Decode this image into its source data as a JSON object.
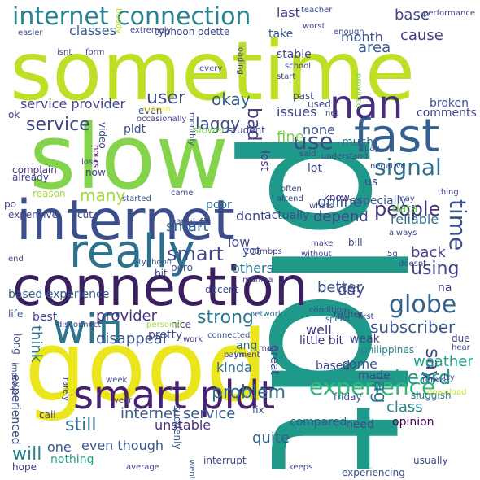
{
  "words": [
    {
      "text": "sometime",
      "color": "#bddf26"
    },
    {
      "text": "slow",
      "color": "#84d44b"
    },
    {
      "text": "pldt",
      "color": "#1f9a8a"
    },
    {
      "text": "good",
      "color": "#ebe51b"
    },
    {
      "text": "connection",
      "color": "#3b1f5f"
    },
    {
      "text": "internet",
      "color": "#3b4e8a"
    },
    {
      "text": "fast",
      "color": "#35608d"
    },
    {
      "text": "nan",
      "color": "#472d7b"
    },
    {
      "text": "really",
      "color": "#2c728e"
    },
    {
      "text": "smart pldt",
      "color": "#482071"
    },
    {
      "text": "wifi",
      "color": "#2a768e"
    },
    {
      "text": "internet connection",
      "color": "#26828e"
    },
    {
      "text": "signal",
      "color": "#2e6f8e"
    },
    {
      "text": "experience",
      "color": "#34b679"
    },
    {
      "text": "time",
      "color": "#3b518b"
    },
    {
      "text": "globe",
      "color": "#33638d"
    },
    {
      "text": "use",
      "color": "#3e4a89"
    },
    {
      "text": "smart",
      "color": "#3f4788"
    },
    {
      "text": "say",
      "color": "#3e4c8a"
    },
    {
      "text": "heard",
      "color": "#1e9c89"
    },
    {
      "text": "problem",
      "color": "#2b748e"
    },
    {
      "text": "internet service",
      "color": "#38598c"
    },
    {
      "text": "people",
      "color": "#46337e"
    },
    {
      "text": "strong",
      "color": "#2a788e"
    },
    {
      "text": "user",
      "color": "#3d4d8a"
    },
    {
      "text": "using",
      "color": "#414487"
    },
    {
      "text": "subscriber",
      "color": "#3a538b"
    },
    {
      "text": "service",
      "color": "#3e4a89"
    },
    {
      "text": "bad",
      "color": "#433e85"
    },
    {
      "text": "okay",
      "color": "#34618d"
    },
    {
      "text": "laggy",
      "color": "#3e4989"
    },
    {
      "text": "lag",
      "color": "#2c728e"
    },
    {
      "text": "still",
      "color": "#2e6f8e"
    },
    {
      "text": "will",
      "color": "#25838e"
    },
    {
      "text": "many",
      "color": "#a2da37"
    },
    {
      "text": "month",
      "color": "#3a548c"
    },
    {
      "text": "area",
      "color": "#375b8d"
    },
    {
      "text": "base",
      "color": "#404588"
    },
    {
      "text": "cause",
      "color": "#433d84"
    },
    {
      "text": "classes",
      "color": "#38588c"
    },
    {
      "text": "service provider",
      "color": "#3f4788"
    },
    {
      "text": "others",
      "color": "#2a788e"
    },
    {
      "text": "depend",
      "color": "#3e4989"
    },
    {
      "text": "reliable",
      "color": "#2e6e8e"
    },
    {
      "text": "online",
      "color": "#38598c"
    },
    {
      "text": "better",
      "color": "#3b528b"
    },
    {
      "text": "day",
      "color": "#3f4889"
    },
    {
      "text": "back",
      "color": "#433e85"
    },
    {
      "text": "disappear",
      "color": "#3b518b"
    },
    {
      "text": "provider",
      "color": "#46327e"
    },
    {
      "text": "think",
      "color": "#2d718e"
    },
    {
      "text": "kinda",
      "color": "#2e6f8e"
    },
    {
      "text": "weather",
      "color": "#1fa187"
    },
    {
      "text": "class",
      "color": "#26828e"
    },
    {
      "text": "well",
      "color": "#443983"
    },
    {
      "text": "unstable",
      "color": "#46307e"
    },
    {
      "text": "even though",
      "color": "#38588c"
    },
    {
      "text": "quite",
      "color": "#34608d"
    },
    {
      "text": "experienced",
      "color": "#3e4a89"
    },
    {
      "text": "based experience",
      "color": "#34608d"
    },
    {
      "text": "last",
      "color": "#404588"
    },
    {
      "text": "dont",
      "color": "#3f4889"
    },
    {
      "text": "lost",
      "color": "#46337e"
    },
    {
      "text": "fine",
      "color": "#75d054"
    },
    {
      "text": "none",
      "color": "#3a538b"
    },
    {
      "text": "issues",
      "color": "#414487"
    },
    {
      "text": "broken",
      "color": "#3b528b"
    },
    {
      "text": "low",
      "color": "#3f4889"
    },
    {
      "text": "ang",
      "color": "#31688e"
    },
    {
      "text": "yet",
      "color": "#3d4e8a"
    },
    {
      "text": "wi fi",
      "color": "#3e4c8a"
    },
    {
      "text": "one",
      "color": "#3a548c"
    },
    {
      "text": "nothing",
      "color": "#20a486"
    },
    {
      "text": "come",
      "color": "#3b528b"
    },
    {
      "text": "made",
      "color": "#3f4788"
    },
    {
      "text": "need",
      "color": "#3e4c8a"
    },
    {
      "text": "opinion",
      "color": "#440154"
    },
    {
      "text": "compared",
      "color": "#3a548c"
    },
    {
      "text": "pldt",
      "color": "#3d4e8a"
    },
    {
      "text": "stable",
      "color": "#404688"
    },
    {
      "text": "take",
      "color": "#3b528b"
    },
    {
      "text": "much",
      "color": "#2e6e8e"
    },
    {
      "text": "lot",
      "color": "#3f4788"
    },
    {
      "text": "poor",
      "color": "#2d708e"
    },
    {
      "text": "know",
      "color": "#46327e"
    },
    {
      "text": "especially",
      "color": "#38588c"
    },
    {
      "text": "data",
      "color": "#6ccd5a"
    },
    {
      "text": "little bit",
      "color": "#46307e"
    },
    {
      "text": "based",
      "color": "#3f4788"
    },
    {
      "text": "great",
      "color": "#3e4a89"
    },
    {
      "text": "philippines",
      "color": "#26828e"
    },
    {
      "text": "suddenly",
      "color": "#3b528b"
    },
    {
      "text": "pretty",
      "color": "#3f4788"
    },
    {
      "text": "actually",
      "color": "#3e4c8a"
    },
    {
      "text": "smart",
      "color": "#34618d"
    },
    {
      "text": "decent",
      "color": "#3e4989"
    },
    {
      "text": "cut",
      "color": "#404588"
    },
    {
      "text": "expensive",
      "color": "#404688"
    },
    {
      "text": "weak",
      "color": "#3f4788"
    },
    {
      "text": "na",
      "color": "#453781"
    },
    {
      "text": "best",
      "color": "#404688"
    },
    {
      "text": "slower",
      "color": "#7ad151"
    },
    {
      "text": "student",
      "color": "#3f4788"
    },
    {
      "text": "occasionally",
      "color": "#404588"
    },
    {
      "text": "video",
      "color": "#3f4889"
    },
    {
      "text": "hours",
      "color": "#440154"
    },
    {
      "text": "even",
      "color": "#3a548c"
    },
    {
      "text": "ok",
      "color": "#414487"
    },
    {
      "text": "complain",
      "color": "#46327e"
    },
    {
      "text": "already",
      "color": "#404588"
    },
    {
      "text": "reason",
      "color": "#a2da37"
    },
    {
      "text": "po",
      "color": "#453781"
    },
    {
      "text": "came",
      "color": "#3e4a89"
    },
    {
      "text": "started",
      "color": "#3b528b"
    },
    {
      "text": "typhoon",
      "color": "#38588c"
    },
    {
      "text": "hard",
      "color": "#3e4a89"
    },
    {
      "text": "bit",
      "color": "#3f4788"
    },
    {
      "text": "pero",
      "color": "#3e4c8a"
    },
    {
      "text": "mahina",
      "color": "#3f4788"
    },
    {
      "text": "100mbps",
      "color": "#404588"
    },
    {
      "text": "end",
      "color": "#3e4989"
    },
    {
      "text": "life",
      "color": "#3a548c"
    },
    {
      "text": "disconnect",
      "color": "#433e85"
    },
    {
      "text": "nice",
      "color": "#3e4c8a"
    },
    {
      "text": "personal",
      "color": "#a2da37"
    },
    {
      "text": "work",
      "color": "#46307e"
    },
    {
      "text": "connected",
      "color": "#3b528b"
    },
    {
      "text": "network",
      "color": "#2c728e"
    },
    {
      "text": "im",
      "color": "#3e4c8a"
    },
    {
      "text": "main",
      "color": "#3f4788"
    },
    {
      "text": "payment",
      "color": "#3f4788"
    },
    {
      "text": "week",
      "color": "#3e4a89"
    },
    {
      "text": "rarely",
      "color": "#404588"
    },
    {
      "text": "improve",
      "color": "#3a548c"
    },
    {
      "text": "long",
      "color": "#3b528b"
    },
    {
      "text": "call",
      "color": "#404688"
    },
    {
      "text": "year",
      "color": "#433e85"
    },
    {
      "text": "fix",
      "color": "#3e4989"
    },
    {
      "text": "interrupt",
      "color": "#3f4788"
    },
    {
      "text": "went",
      "color": "#38588c"
    },
    {
      "text": "average",
      "color": "#404588"
    },
    {
      "text": "hope",
      "color": "#46327e"
    },
    {
      "text": "keeps",
      "color": "#3e4a89"
    },
    {
      "text": "experiencing",
      "color": "#3b528b"
    },
    {
      "text": "usually",
      "color": "#3e4c8a"
    },
    {
      "text": "friday",
      "color": "#3f4788"
    },
    {
      "text": "sluggish",
      "color": "#2c728e"
    },
    {
      "text": "terms",
      "color": "#3e4989"
    },
    {
      "text": "try",
      "color": "#3e4c8a"
    },
    {
      "text": "download",
      "color": "#bddf26"
    },
    {
      "text": "due",
      "color": "#404688"
    },
    {
      "text": "hear",
      "color": "#3e4a89"
    },
    {
      "text": "speed",
      "color": "#3a548c"
    },
    {
      "text": "first",
      "color": "#3e4c8a"
    },
    {
      "text": "condition",
      "color": "#3e4a89"
    },
    {
      "text": "rather",
      "color": "#3f4788"
    },
    {
      "text": "without",
      "color": "#3e4989"
    },
    {
      "text": "make",
      "color": "#404588"
    },
    {
      "text": "bill",
      "color": "#3f4788"
    },
    {
      "text": "5g",
      "color": "#3e4c8a"
    },
    {
      "text": "doesnt",
      "color": "#3f4788"
    },
    {
      "text": "always",
      "color": "#3e4a89"
    },
    {
      "text": "whats",
      "color": "#3e4989"
    },
    {
      "text": "may",
      "color": "#404688"
    },
    {
      "text": "thing",
      "color": "#3f4788"
    },
    {
      "text": "us",
      "color": "#404588"
    },
    {
      "text": "negative",
      "color": "#3e4a89"
    },
    {
      "text": "attend",
      "color": "#3e4c8a"
    },
    {
      "text": "often",
      "color": "#3f4788"
    },
    {
      "text": "said",
      "color": "#404588"
    },
    {
      "text": "understand",
      "color": "#3e4a89"
    },
    {
      "text": "pay",
      "color": "#3e4c8a"
    },
    {
      "text": "comments",
      "color": "#3f4788"
    },
    {
      "text": "province",
      "color": "#84d44b"
    },
    {
      "text": "net",
      "color": "#3e4989"
    },
    {
      "text": "used",
      "color": "#3e4c8a"
    },
    {
      "text": "past",
      "color": "#3f4788"
    },
    {
      "text": "start",
      "color": "#404588"
    },
    {
      "text": "school",
      "color": "#3e4a89"
    },
    {
      "text": "every",
      "color": "#3e4c8a"
    },
    {
      "text": "loading",
      "color": "#3f4788"
    },
    {
      "text": "form",
      "color": "#404588"
    },
    {
      "text": "isnt",
      "color": "#3e4a89"
    },
    {
      "text": "easier",
      "color": "#3e4c8a"
    },
    {
      "text": "extremely",
      "color": "#3f4788"
    },
    {
      "text": "typhoon odette",
      "color": "#3e4989"
    },
    {
      "text": "worst",
      "color": "#404588"
    },
    {
      "text": "teacher",
      "color": "#3e4a89"
    },
    {
      "text": "enough",
      "color": "#3e4c8a"
    },
    {
      "text": "performance",
      "color": "#3f4788"
    },
    {
      "text": "naman",
      "color": "#fde725"
    },
    {
      "text": "monthly",
      "color": "#3e4a89"
    },
    {
      "text": "lose",
      "color": "#3e4c8a"
    },
    {
      "text": "now",
      "color": "#404588"
    },
    {
      "text": "buddy",
      "color": "#bddf26"
    }
  ]
}
